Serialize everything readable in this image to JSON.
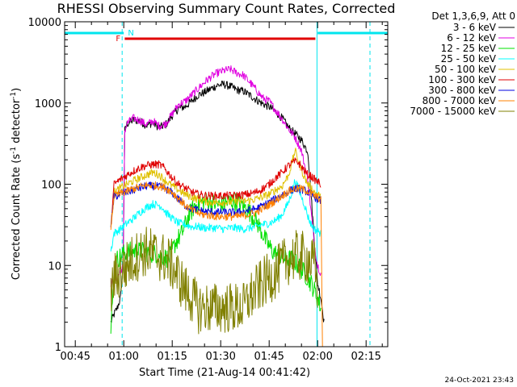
{
  "chart_data": {
    "type": "line",
    "title": "RHESSI Observing Summary Count Rates, Corrected",
    "xlabel": "Start Time (21-Aug-14 00:41:42)",
    "ylabel_pre": "Corrected Count Rate (s",
    "ylabel_sup1": "-1",
    "ylabel_mid": " detector",
    "ylabel_sup2": "-1",
    "ylabel_post": ")",
    "y_scale": "log",
    "ylim": [
      1,
      10000
    ],
    "xlim_minutes": [
      41.7,
      141.7
    ],
    "x_ticks": [
      {
        "m": 45,
        "label": "00:45"
      },
      {
        "m": 60,
        "label": "01:00"
      },
      {
        "m": 75,
        "label": "01:15"
      },
      {
        "m": 90,
        "label": "01:30"
      },
      {
        "m": 105,
        "label": "01:45"
      },
      {
        "m": 120,
        "label": "02:00"
      },
      {
        "m": 135,
        "label": "02:15"
      }
    ],
    "y_ticks": [
      {
        "v": 1,
        "label": "1"
      },
      {
        "v": 10,
        "label": "10"
      },
      {
        "v": 100,
        "label": "100"
      },
      {
        "v": 1000,
        "label": "1000"
      },
      {
        "v": 10000,
        "label": "10000"
      }
    ],
    "legend_header": "Det 1,3,6,9, Att 0",
    "legend_position": "right",
    "timestamp": "24-Oct-2021 23:43",
    "flags": {
      "night_label": "N",
      "flare_label": "F",
      "night_color": "#00e5ee",
      "flare_color": "#e00000",
      "night_intervals": [
        [
          41.7,
          60.0
        ],
        [
          120.0,
          141.7
        ]
      ],
      "flare_interval": [
        60.3,
        119.3
      ],
      "dashed_boundaries": [
        59.5,
        136.2
      ],
      "solid_boundaries": [
        41.7,
        119.8
      ]
    },
    "series": [
      {
        "name": "3 - 6 keV",
        "color": "#000000",
        "x": [
          56,
          57,
          58,
          59,
          59.8,
          60.3,
          61,
          63,
          65,
          67,
          69,
          71,
          73,
          75,
          77,
          79,
          81,
          83,
          85,
          87,
          89,
          91,
          93,
          95,
          97,
          99,
          101,
          103,
          105,
          107,
          109,
          111,
          113,
          115,
          117,
          119,
          120,
          121,
          122
        ],
        "y": [
          2,
          2.5,
          3,
          4,
          10,
          450,
          550,
          620,
          600,
          530,
          570,
          500,
          540,
          700,
          860,
          900,
          1050,
          1250,
          1350,
          1500,
          1650,
          1700,
          1600,
          1450,
          1400,
          1250,
          1100,
          980,
          900,
          780,
          650,
          500,
          420,
          350,
          250,
          20,
          6,
          4,
          2
        ]
      },
      {
        "name": "6 - 12 keV",
        "color": "#e000e0",
        "x": [
          56,
          58,
          59.8,
          60.3,
          61,
          63,
          65,
          67,
          69,
          71,
          73,
          75,
          77,
          79,
          81,
          83,
          85,
          87,
          89,
          91,
          93,
          95,
          97,
          99,
          101,
          103,
          105,
          107,
          109,
          111,
          113,
          115,
          117,
          119,
          120,
          121
        ],
        "y": [
          6,
          7,
          10,
          450,
          560,
          650,
          610,
          540,
          600,
          520,
          560,
          730,
          960,
          1050,
          1250,
          1500,
          1800,
          2100,
          2350,
          2500,
          2600,
          2350,
          2200,
          1800,
          1450,
          1150,
          1050,
          820,
          640,
          480,
          380,
          260,
          110,
          18,
          10,
          8
        ]
      },
      {
        "name": "12 - 25 keV",
        "color": "#00e000",
        "x": [
          56,
          57,
          58,
          60,
          62,
          64,
          66,
          68,
          70,
          72,
          74,
          76,
          78,
          80,
          82,
          84,
          86,
          88,
          90,
          92,
          94,
          96,
          98,
          100,
          102,
          104,
          106,
          108,
          110,
          112,
          114,
          116,
          118,
          120,
          121
        ],
        "y": [
          1.5,
          8,
          12,
          14,
          15,
          15,
          15,
          14,
          14,
          13,
          12,
          19,
          25,
          40,
          55,
          60,
          62,
          58,
          55,
          60,
          62,
          58,
          50,
          40,
          30,
          20,
          15,
          13,
          12,
          12,
          10,
          8,
          6,
          4,
          3
        ]
      },
      {
        "name": "25 - 50 keV",
        "color": "#00ffff",
        "x": [
          56,
          57,
          59,
          61,
          63,
          65,
          67,
          69,
          71,
          72,
          73,
          75,
          77,
          79,
          81,
          83,
          85,
          87,
          89,
          91,
          93,
          95,
          97,
          99,
          101,
          103,
          105,
          107,
          109,
          111,
          112,
          113,
          114,
          115,
          116,
          117,
          118,
          119,
          121
        ],
        "y": [
          15,
          25,
          28,
          33,
          38,
          45,
          52,
          57,
          55,
          52,
          45,
          38,
          33,
          32,
          30,
          30,
          29,
          29,
          29,
          28,
          29,
          29,
          28,
          29,
          30,
          32,
          33,
          36,
          42,
          60,
          80,
          110,
          90,
          70,
          55,
          40,
          32,
          28,
          25
        ]
      },
      {
        "name": "50 - 100 keV",
        "color": "#e0c000",
        "x": [
          56,
          57,
          59,
          61,
          63,
          65,
          67,
          69,
          71,
          72,
          73,
          75,
          77,
          79,
          81,
          83,
          85,
          87,
          89,
          91,
          93,
          95,
          97,
          99,
          101,
          103,
          105,
          107,
          109,
          111,
          112,
          113,
          114,
          115,
          116,
          117,
          118,
          119,
          121
        ],
        "y": [
          30,
          80,
          90,
          100,
          110,
          120,
          130,
          140,
          130,
          120,
          110,
          95,
          85,
          75,
          70,
          65,
          62,
          60,
          60,
          60,
          60,
          62,
          62,
          63,
          66,
          70,
          75,
          85,
          95,
          130,
          180,
          260,
          200,
          150,
          120,
          100,
          90,
          80,
          70
        ]
      },
      {
        "name": "100 - 300 keV",
        "color": "#e00000",
        "x": [
          56,
          57,
          59,
          61,
          63,
          65,
          67,
          69,
          71,
          72,
          73,
          75,
          77,
          79,
          81,
          83,
          85,
          87,
          89,
          91,
          93,
          95,
          97,
          99,
          101,
          103,
          105,
          107,
          109,
          111,
          113,
          114,
          115,
          116,
          117,
          118,
          119,
          121
        ],
        "y": [
          30,
          100,
          115,
          130,
          145,
          160,
          170,
          175,
          175,
          165,
          150,
          120,
          100,
          90,
          80,
          75,
          73,
          72,
          72,
          72,
          72,
          73,
          74,
          76,
          80,
          88,
          100,
          120,
          140,
          170,
          190,
          185,
          165,
          145,
          130,
          125,
          115,
          100
        ]
      },
      {
        "name": "300 - 800 keV",
        "color": "#0000e0",
        "x": [
          56,
          57,
          59,
          61,
          63,
          65,
          67,
          69,
          71,
          73,
          75,
          77,
          79,
          81,
          83,
          85,
          87,
          89,
          91,
          93,
          95,
          97,
          99,
          101,
          103,
          105,
          107,
          109,
          111,
          113,
          115,
          117,
          119,
          121
        ],
        "y": [
          30,
          70,
          75,
          80,
          85,
          90,
          95,
          95,
          93,
          88,
          78,
          65,
          55,
          50,
          48,
          46,
          46,
          45,
          45,
          45,
          45,
          46,
          48,
          50,
          54,
          60,
          66,
          74,
          82,
          88,
          87,
          80,
          70,
          62
        ]
      },
      {
        "name": "800 - 7000 keV",
        "color": "#ff8000",
        "x": [
          56,
          57,
          59,
          61,
          63,
          65,
          67,
          69,
          71,
          73,
          75,
          77,
          79,
          81,
          83,
          85,
          87,
          89,
          91,
          93,
          95,
          97,
          99,
          101,
          103,
          105,
          107,
          109,
          111,
          113,
          115,
          117,
          119,
          121,
          121.5
        ],
        "y": [
          30,
          72,
          77,
          82,
          88,
          93,
          97,
          97,
          95,
          90,
          80,
          66,
          55,
          48,
          44,
          42,
          41,
          40,
          40,
          40,
          40,
          41,
          43,
          45,
          50,
          56,
          63,
          72,
          82,
          88,
          88,
          82,
          72,
          65,
          1
        ]
      },
      {
        "name": "7000 - 15000 keV",
        "color": "#808000",
        "x": [
          56,
          57,
          59,
          61,
          63,
          65,
          67,
          69,
          71,
          73,
          75,
          77,
          79,
          81,
          83,
          85,
          87,
          89,
          91,
          93,
          95,
          97,
          99,
          101,
          103,
          105,
          107,
          109,
          111,
          113,
          115,
          117,
          119,
          120
        ],
        "y": [
          4,
          7,
          8,
          10,
          12,
          14,
          15,
          14,
          13,
          12,
          10,
          7,
          5,
          4,
          3,
          3,
          3,
          3,
          3,
          3,
          3,
          3,
          4,
          5,
          6,
          7,
          8,
          10,
          12,
          13,
          13,
          12,
          10,
          5
        ]
      }
    ]
  }
}
